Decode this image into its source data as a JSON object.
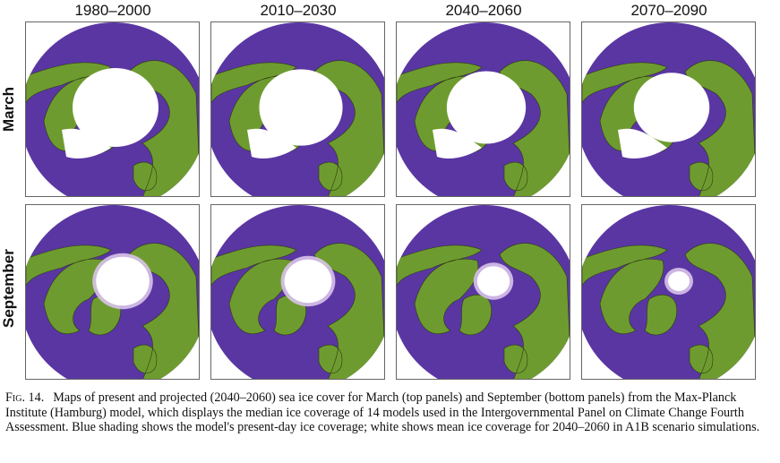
{
  "columns": [
    "1980–2000",
    "2010–2030",
    "2040–2060",
    "2070–2090"
  ],
  "rows": [
    "March",
    "September"
  ],
  "colors": {
    "ocean": "#5a36a3",
    "land": "#6e9b2f",
    "ice": "#ffffff",
    "ice_edge": "#d8c3ea"
  },
  "caption": {
    "label": "Fig. 14.",
    "text": "Maps of present and projected (2040–2060) sea ice cover for March (top panels) and September (bottom panels) from the Max-Planck Institute (Hamburg) model, which displays the median ice coverage of 14 models used in the Intergovernmental Panel on Climate Change Fourth Assessment. Blue shading shows the model's present-day ice coverage; white shows mean ice coverage for 2040–2060 in A1B scenario simulations."
  }
}
